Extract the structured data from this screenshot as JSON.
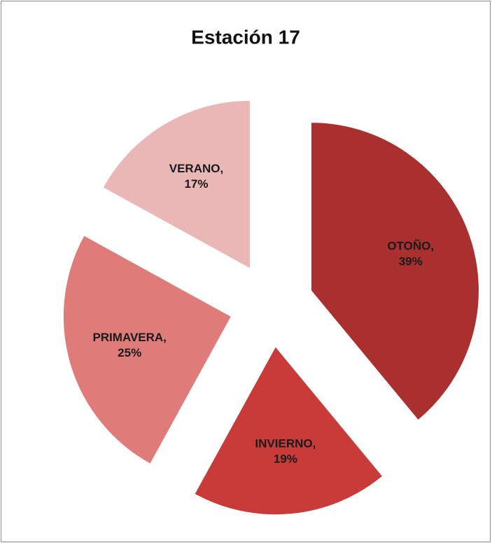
{
  "chart_data": {
    "type": "pie",
    "title": "Estación 17",
    "values": [
      39,
      19,
      25,
      17
    ],
    "value_labels": [
      "OTOÑO, 39%",
      "INVIERNO, 19%",
      "PRIMAVERA, 25%",
      "VERANO, 17%"
    ],
    "colors": [
      "#a9302e",
      "#c93b38",
      "#df7b79",
      "#e9b7b6"
    ]
  }
}
